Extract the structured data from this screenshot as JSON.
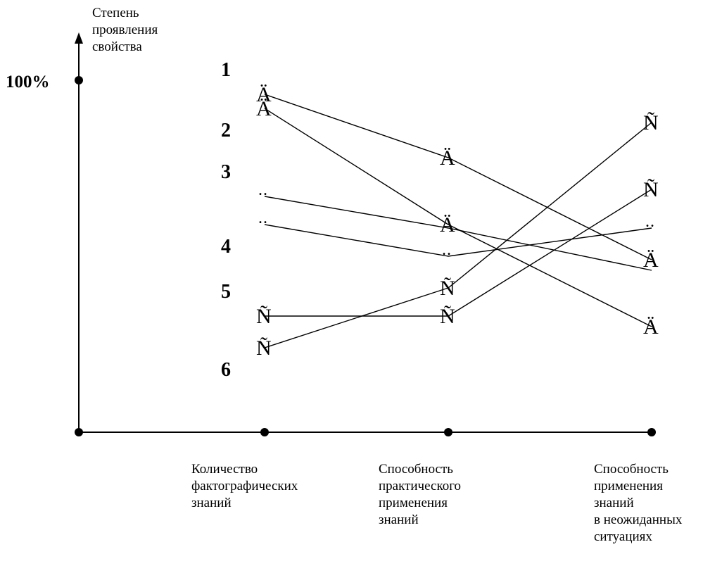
{
  "chart_data": {
    "type": "line",
    "ylabel": [
      "Степень",
      "проявления",
      "свойства"
    ],
    "ytick": "100%",
    "ylim": [
      0,
      100
    ],
    "categories": [
      [
        "Количество",
        "фактографических",
        "знаний"
      ],
      [
        "Способность",
        "практического",
        "применения",
        "знаний"
      ],
      [
        "Способность",
        "применения",
        "знаний",
        "в неожиданных",
        "ситуациях"
      ]
    ],
    "series": [
      {
        "name": "1",
        "values": [
          96,
          78,
          49
        ],
        "markers": [
          "Ä",
          "Ä",
          "Ä"
        ]
      },
      {
        "name": "2",
        "values": [
          92,
          59,
          30
        ],
        "markers": [
          "Ä",
          "Ä",
          "Ä"
        ]
      },
      {
        "name": "3",
        "values": [
          67,
          58,
          46
        ],
        "markers": [
          "..",
          "",
          ""
        ]
      },
      {
        "name": "4",
        "values": [
          59,
          50,
          58
        ],
        "markers": [
          "..",
          "..",
          ".."
        ]
      },
      {
        "name": "5",
        "values": [
          33,
          33,
          69
        ],
        "markers": [
          "Ñ",
          "Ñ",
          "Ñ"
        ]
      },
      {
        "name": "6",
        "values": [
          24,
          41,
          88
        ],
        "markers": [
          "Ñ",
          "Ñ",
          "Ñ"
        ]
      }
    ]
  }
}
